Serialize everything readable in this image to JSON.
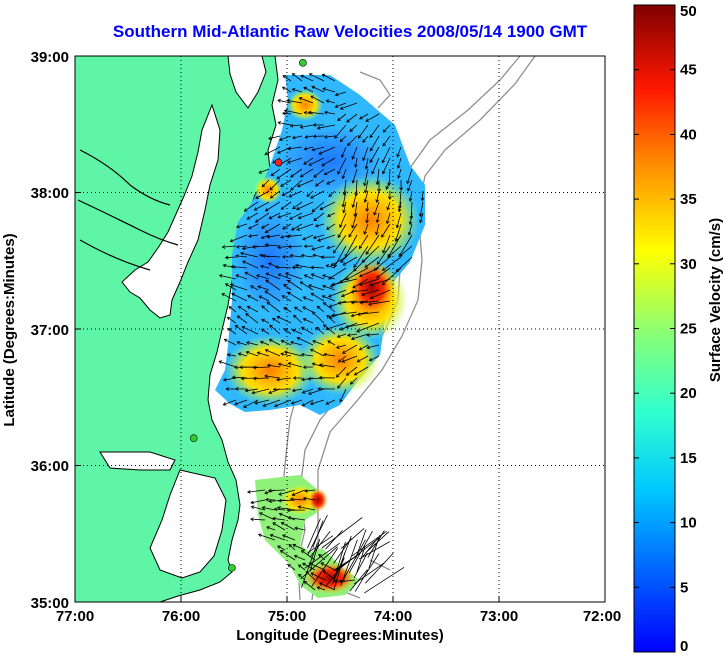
{
  "title": "Southern Mid-Atlantic Raw Velocities 2008/05/14 1900 GMT",
  "map": {
    "xlabel": "Longitude (Degrees:Minutes)",
    "ylabel": "Latitude (Degrees:Minutes)",
    "lon_range": [
      -77,
      -72
    ],
    "lat_range": [
      35,
      39
    ],
    "x_ticks": [
      "77:00",
      "76:00",
      "75:00",
      "74:00",
      "73:00",
      "72:00"
    ],
    "y_ticks": [
      "39:00",
      "38:00",
      "37:00",
      "36:00",
      "35:00"
    ],
    "grid": "dotted",
    "land_color": "#5ff5a6",
    "coast_color": "#000000",
    "bathymetry_color": "#909090",
    "stations": [
      {
        "lon": -74.85,
        "lat": 38.95,
        "color": "#33cc33"
      },
      {
        "lon": -75.08,
        "lat": 38.22,
        "color": "#ff2222"
      },
      {
        "lon": -75.88,
        "lat": 36.2,
        "color": "#33cc33"
      },
      {
        "lon": -75.52,
        "lat": 35.25,
        "color": "#33cc33"
      }
    ]
  },
  "colorbar": {
    "label": "Surface Velocity (cm/s)",
    "min": 0,
    "max": 50,
    "ticks": [
      "0",
      "5",
      "10",
      "15",
      "20",
      "25",
      "30",
      "35",
      "40",
      "45",
      "50"
    ],
    "colormap": "jet"
  }
}
